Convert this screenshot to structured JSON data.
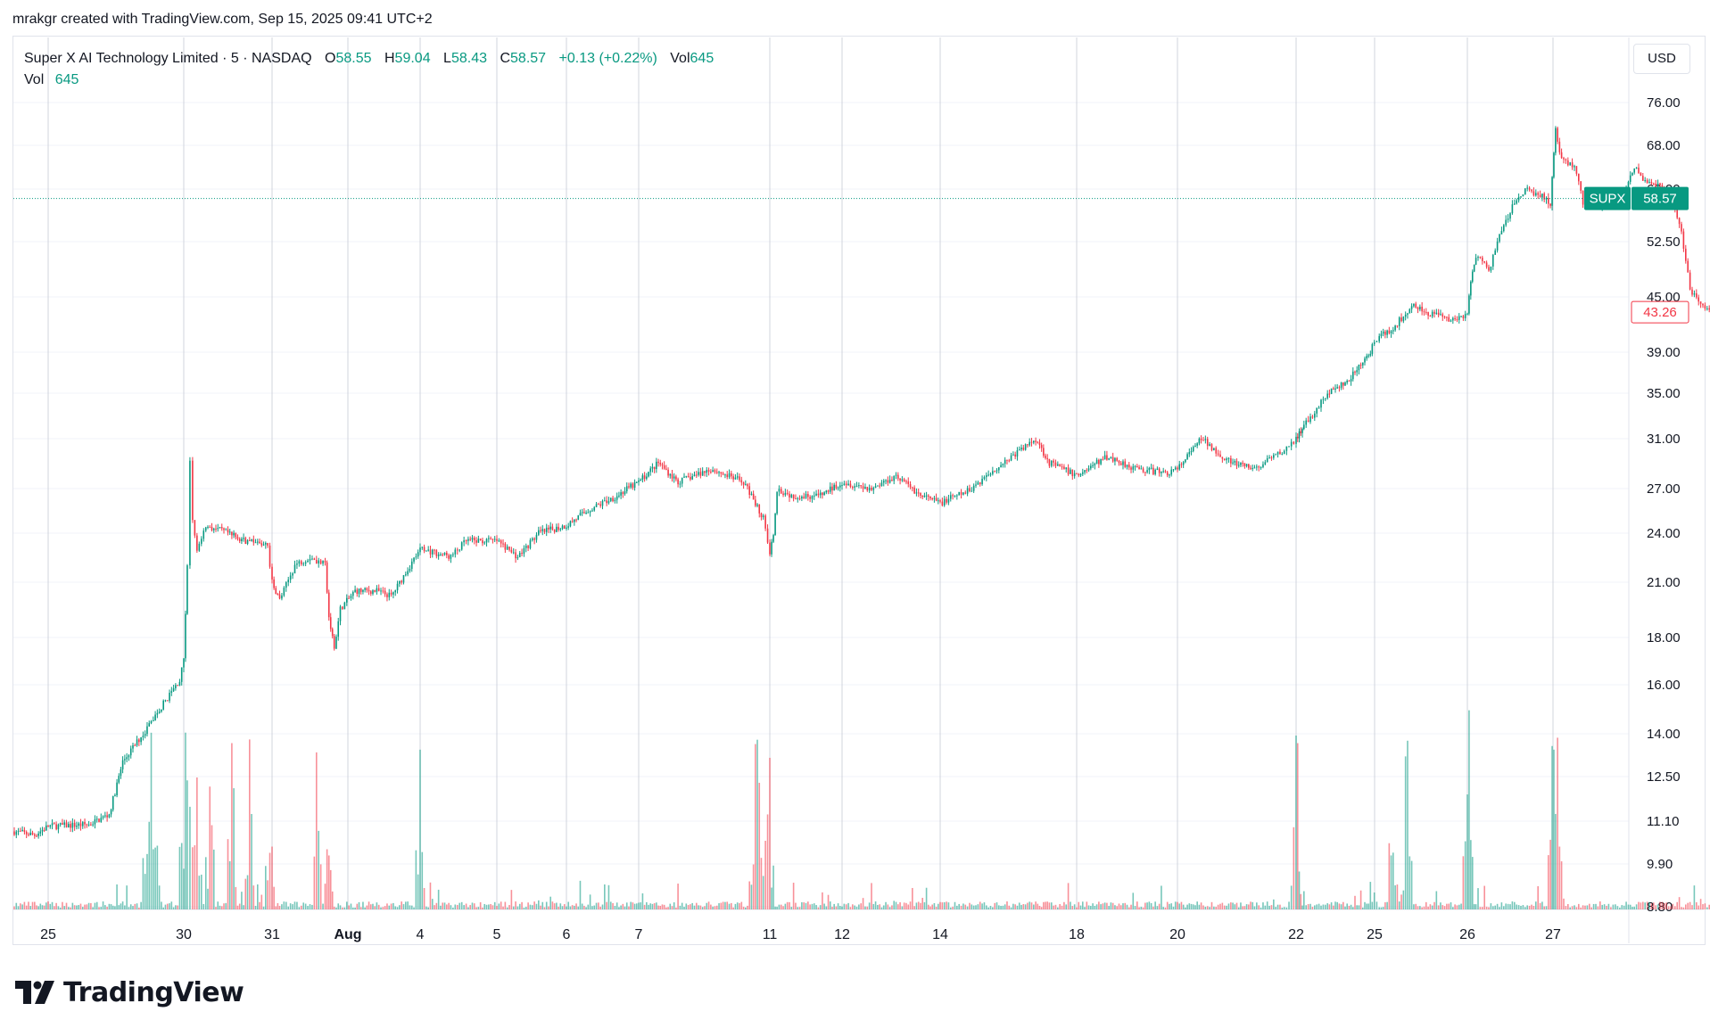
{
  "header": {
    "credit": "mrakgr created with TradingView.com, Sep 15, 2025 09:41 UTC+2"
  },
  "legend": {
    "symbol_name": "Super X AI Technology Limited",
    "interval": "5",
    "exchange": "NASDAQ",
    "o_label": "O",
    "o_value": "58.55",
    "h_label": "H",
    "h_value": "59.04",
    "l_label": "L",
    "l_value": "58.43",
    "c_label": "C",
    "c_value": "58.57",
    "change": "+0.13 (+0.22%)",
    "vol_label": "Vol",
    "vol_value": "645",
    "vol_row_label": "Vol",
    "vol_row_value": "645"
  },
  "currency": "USD",
  "brand": {
    "name": "TradingView"
  },
  "colors": {
    "up": "#089981",
    "down": "#f23645",
    "grid": "#f0f3fa",
    "session_line": "#d1d4dc",
    "text": "#131722"
  },
  "chart_data": {
    "type": "candlestick",
    "ticker": "SUPX",
    "y_scale": "log",
    "ylim": [
      8.8,
      82
    ],
    "y_ticks": [
      "76.00",
      "68.00",
      "60.00",
      "52.50",
      "45.00",
      "39.00",
      "35.00",
      "31.00",
      "27.00",
      "24.00",
      "21.00",
      "18.00",
      "16.00",
      "14.00",
      "12.50",
      "11.10",
      "9.90",
      "8.80"
    ],
    "x_ticks": [
      {
        "label": "25",
        "t": 0.0
      },
      {
        "label": "30",
        "t": 1.0
      },
      {
        "label": "31",
        "t": 2.0
      },
      {
        "label": "Aug",
        "t": 3.0
      },
      {
        "label": "4",
        "t": 4.0
      },
      {
        "label": "5",
        "t": 5.0
      },
      {
        "label": "6",
        "t": 6.0
      },
      {
        "label": "7",
        "t": 7.0
      },
      {
        "label": "11",
        "t": 8.0
      },
      {
        "label": "12",
        "t": 9.0
      },
      {
        "label": "14",
        "t": 10.0
      },
      {
        "label": "18",
        "t": 11.0
      },
      {
        "label": "20",
        "t": 12.0
      },
      {
        "label": "22",
        "t": 13.0
      },
      {
        "label": "25",
        "t": 14.0
      },
      {
        "label": "26",
        "t": 15.0
      },
      {
        "label": "27",
        "t": 16.0
      }
    ],
    "session_t_range": [
      -0.25,
      16.95
    ],
    "price_path": [
      [
        -0.25,
        10.8
      ],
      [
        -0.1,
        10.7
      ],
      [
        0.0,
        10.95
      ],
      [
        0.3,
        11.0
      ],
      [
        0.45,
        11.3
      ],
      [
        0.55,
        13.0
      ],
      [
        0.7,
        14.0
      ],
      [
        0.85,
        15.2
      ],
      [
        0.97,
        16.2
      ],
      [
        1.0,
        17.0
      ],
      [
        1.04,
        22.0
      ],
      [
        1.07,
        29.0
      ],
      [
        1.1,
        25.0
      ],
      [
        1.15,
        23.0
      ],
      [
        1.25,
        24.5
      ],
      [
        1.5,
        24.0
      ],
      [
        1.7,
        23.5
      ],
      [
        1.95,
        23.2
      ],
      [
        2.0,
        21.0
      ],
      [
        2.1,
        20.0
      ],
      [
        2.3,
        22.0
      ],
      [
        2.5,
        22.5
      ],
      [
        2.7,
        22.0
      ],
      [
        2.75,
        19.0
      ],
      [
        2.82,
        17.5
      ],
      [
        2.9,
        19.5
      ],
      [
        3.1,
        20.5
      ],
      [
        3.4,
        20.5
      ],
      [
        3.6,
        20.2
      ],
      [
        4.0,
        23.0
      ],
      [
        4.4,
        22.5
      ],
      [
        4.6,
        23.5
      ],
      [
        5.0,
        23.5
      ],
      [
        5.3,
        22.5
      ],
      [
        5.6,
        24.0
      ],
      [
        6.0,
        24.5
      ],
      [
        6.3,
        25.5
      ],
      [
        6.7,
        26.5
      ],
      [
        7.0,
        27.5
      ],
      [
        7.15,
        29.0
      ],
      [
        7.3,
        27.5
      ],
      [
        7.55,
        28.5
      ],
      [
        7.8,
        27.5
      ],
      [
        7.95,
        25.0
      ],
      [
        8.0,
        22.5
      ],
      [
        8.05,
        24.0
      ],
      [
        8.1,
        27.0
      ],
      [
        8.3,
        26.5
      ],
      [
        8.7,
        26.5
      ],
      [
        9.0,
        27.5
      ],
      [
        9.3,
        27.0
      ],
      [
        9.55,
        28.0
      ],
      [
        9.8,
        26.5
      ],
      [
        10.0,
        26.0
      ],
      [
        10.2,
        26.8
      ],
      [
        10.4,
        28.5
      ],
      [
        10.7,
        31.0
      ],
      [
        10.8,
        29.0
      ],
      [
        11.0,
        28.0
      ],
      [
        11.3,
        29.5
      ],
      [
        11.6,
        28.5
      ],
      [
        11.9,
        28.2
      ],
      [
        12.0,
        28.5
      ],
      [
        12.2,
        31.0
      ],
      [
        12.45,
        29.0
      ],
      [
        12.65,
        28.5
      ],
      [
        12.9,
        30.0
      ],
      [
        13.1,
        32.0
      ],
      [
        13.4,
        35.0
      ],
      [
        13.65,
        36.0
      ],
      [
        13.9,
        38.5
      ],
      [
        13.97,
        39.5
      ],
      [
        14.05,
        40.5
      ],
      [
        14.2,
        41.5
      ],
      [
        14.4,
        44.0
      ],
      [
        14.6,
        43.0
      ],
      [
        14.8,
        42.5
      ],
      [
        15.0,
        43.0
      ],
      [
        15.04,
        47.0
      ],
      [
        15.1,
        50.5
      ],
      [
        15.25,
        48.5
      ],
      [
        15.4,
        54.0
      ],
      [
        15.55,
        58.0
      ],
      [
        15.7,
        60.0
      ],
      [
        15.85,
        59.0
      ],
      [
        15.97,
        58.0
      ],
      [
        16.03,
        70.5
      ],
      [
        16.1,
        65.0
      ],
      [
        16.25,
        64.0
      ],
      [
        16.35,
        58.0
      ],
      [
        16.5,
        57.5
      ],
      [
        16.65,
        58.0
      ],
      [
        16.78,
        58.5
      ],
      [
        16.88,
        61.0
      ],
      [
        16.95,
        64.0
      ],
      [
        17.1,
        61.0
      ],
      [
        17.25,
        60.5
      ],
      [
        17.4,
        57.5
      ],
      [
        17.5,
        54.0
      ],
      [
        17.6,
        46.0
      ],
      [
        17.7,
        44.5
      ],
      [
        17.85,
        43.5
      ],
      [
        17.9,
        41.5
      ],
      [
        17.95,
        43.5
      ],
      [
        18.05,
        45.0
      ],
      [
        18.12,
        43.26
      ]
    ],
    "current_price": "58.57",
    "last_price": "43.26",
    "volume_spike_t": [
      0.75,
      1.02,
      1.05,
      1.08,
      1.1,
      1.15,
      1.3,
      1.55,
      1.75,
      1.98,
      2.6,
      2.75,
      4.0,
      7.9,
      8.0,
      13.0,
      14.2,
      14.35,
      15.0,
      16.0,
      16.05
    ]
  }
}
